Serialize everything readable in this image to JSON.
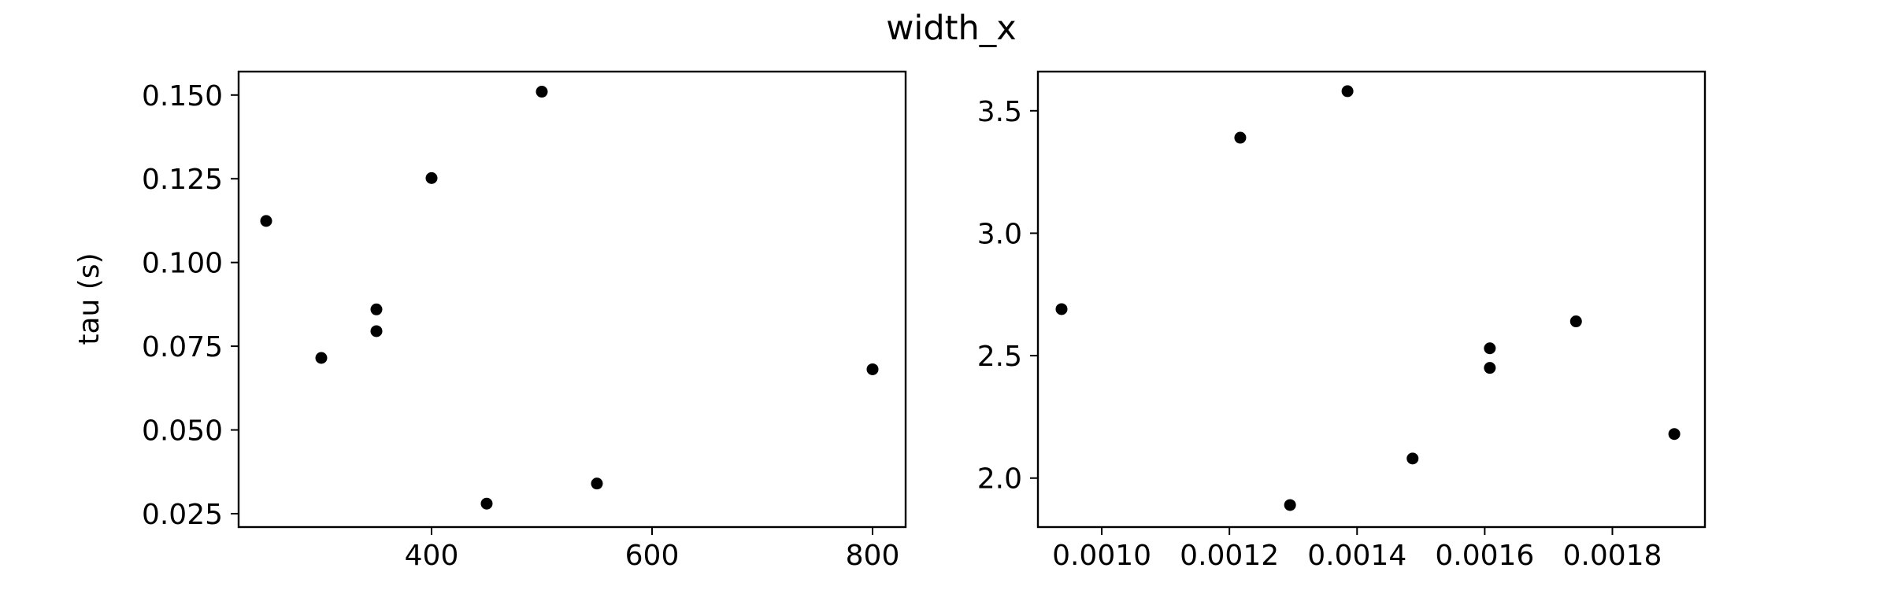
{
  "figure": {
    "suptitle": "width_x"
  },
  "chart_data": [
    {
      "type": "scatter",
      "title": "",
      "xlabel": "",
      "ylabel": "tau (s)",
      "xlim": [
        225,
        830
      ],
      "ylim": [
        0.021,
        0.157
      ],
      "xticks": [
        400,
        600,
        800
      ],
      "xtick_labels": [
        "400",
        "600",
        "800"
      ],
      "yticks": [
        0.025,
        0.05,
        0.075,
        0.1,
        0.125,
        0.15
      ],
      "ytick_labels": [
        "0.025",
        "0.050",
        "0.075",
        "0.100",
        "0.125",
        "0.150"
      ],
      "grid": false,
      "marker_color": "#000000",
      "points": [
        {
          "x": 250,
          "y": 0.1124
        },
        {
          "x": 300,
          "y": 0.0715
        },
        {
          "x": 350,
          "y": 0.086
        },
        {
          "x": 350,
          "y": 0.0795
        },
        {
          "x": 400,
          "y": 0.1252
        },
        {
          "x": 450,
          "y": 0.028
        },
        {
          "x": 500,
          "y": 0.151
        },
        {
          "x": 550,
          "y": 0.034
        },
        {
          "x": 800,
          "y": 0.0681
        }
      ]
    },
    {
      "type": "scatter",
      "title": "",
      "xlabel": "",
      "ylabel": "",
      "xlim": [
        0.0009,
        0.001945
      ],
      "ylim": [
        1.8,
        3.66
      ],
      "xticks": [
        0.001,
        0.0012,
        0.0014,
        0.0016,
        0.0018
      ],
      "xtick_labels": [
        "0.0010",
        "0.0012",
        "0.0014",
        "0.0016",
        "0.0018"
      ],
      "yticks": [
        2.0,
        2.5,
        3.0,
        3.5
      ],
      "ytick_labels": [
        "2.0",
        "2.5",
        "3.0",
        "3.5"
      ],
      "grid": false,
      "marker_color": "#000000",
      "points": [
        {
          "x": 0.000937,
          "y": 2.69
        },
        {
          "x": 0.001217,
          "y": 3.39
        },
        {
          "x": 0.001295,
          "y": 1.89
        },
        {
          "x": 0.001385,
          "y": 3.58
        },
        {
          "x": 0.001487,
          "y": 2.08
        },
        {
          "x": 0.001608,
          "y": 2.53
        },
        {
          "x": 0.001608,
          "y": 2.45
        },
        {
          "x": 0.001743,
          "y": 2.64
        },
        {
          "x": 0.001897,
          "y": 2.18
        }
      ]
    }
  ]
}
